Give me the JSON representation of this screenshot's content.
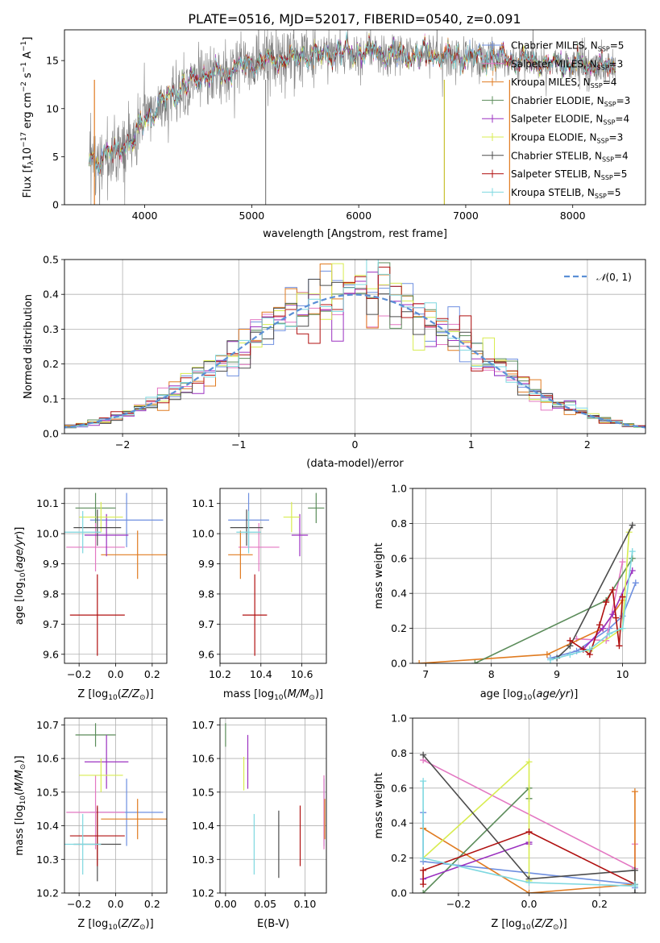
{
  "figure_title": "PLATE=0516, MJD=52017, FIBERID=0540, z=0.091",
  "colors": {
    "Chabrier MILES": "#6e8fe0",
    "Salpeter MILES": "#e377c2",
    "Kroupa MILES": "#e07b20",
    "Chabrier ELODIE": "#5b8c5a",
    "Salpeter ELODIE": "#9b30c0",
    "Kroupa ELODIE": "#d8ec50",
    "Chabrier STELIB": "#4c4c4c",
    "Salpeter STELIB": "#b01010",
    "Kroupa STELIB": "#7ed8e0",
    "data": "#808080",
    "normal": "#5b8fd6"
  },
  "chart_data": [
    {
      "id": "spectrum",
      "type": "line",
      "xlabel": "wavelength [Angstrom, rest frame]",
      "ylabel": "Flux [f_λ10^-17 erg cm^-2 s^-1 A^-1]",
      "xlim": [
        3250,
        8680
      ],
      "ylim": [
        0,
        18.2
      ],
      "xticks": [
        4000,
        5000,
        6000,
        7000,
        8000
      ],
      "yticks": [
        0,
        5,
        10,
        15
      ],
      "legend_position": "right",
      "grid": false,
      "continuum": {
        "x": [
          3480,
          3600,
          3700,
          3800,
          3900,
          4000,
          4100,
          4200,
          4300,
          4400,
          4500,
          4600,
          4700,
          4800,
          4900,
          5000,
          5200,
          5400,
          5600,
          5800,
          6000,
          6200,
          6400,
          6600,
          6800,
          7000,
          7200,
          7400,
          7600,
          7800,
          8000,
          8200,
          8400
        ],
        "y": [
          4.6,
          5.0,
          5.4,
          6.2,
          6.8,
          8.8,
          10.0,
          10.8,
          11.8,
          12.4,
          13.2,
          13.4,
          13.6,
          14.0,
          14.4,
          14.6,
          15.0,
          15.4,
          15.6,
          15.8,
          15.9,
          15.8,
          15.7,
          15.6,
          15.5,
          15.4,
          15.2,
          15.1,
          14.9,
          14.7,
          14.6,
          14.4,
          14.2
        ]
      },
      "series": [
        {
          "name": "Chabrier MILES",
          "nssp": "5"
        },
        {
          "name": "Salpeter MILES",
          "nssp": "3"
        },
        {
          "name": "Kroupa MILES",
          "nssp": "4"
        },
        {
          "name": "Chabrier ELODIE",
          "nssp": "3"
        },
        {
          "name": "Salpeter ELODIE",
          "nssp": "4"
        },
        {
          "name": "Kroupa ELODIE",
          "nssp": "3"
        },
        {
          "name": "Chabrier STELIB",
          "nssp": "4"
        },
        {
          "name": "Salpeter STELIB",
          "nssp": "5"
        },
        {
          "name": "Kroupa STELIB",
          "nssp": "5"
        }
      ]
    },
    {
      "id": "residuals",
      "type": "line",
      "xlabel": "(data-model)/error",
      "ylabel": "Normed distribution",
      "xlim": [
        -2.5,
        2.5
      ],
      "ylim": [
        0,
        0.5
      ],
      "xticks": [
        -2,
        -1,
        0,
        1,
        2
      ],
      "yticks": [
        0.0,
        0.1,
        0.2,
        0.3,
        0.4,
        0.5
      ],
      "grid": true,
      "legend": "N(0,1)",
      "legend_position": "top-right",
      "bin_width": 0.1
    },
    {
      "id": "age_vs_Z",
      "type": "scatter",
      "xlabel": "Z [log10(Z/Z⊙)]",
      "ylabel": "age  [log10(age/yr)]",
      "xlim": [
        -0.28,
        0.28
      ],
      "ylim": [
        9.57,
        10.15
      ],
      "xticks": [
        -0.2,
        0.0,
        0.2
      ],
      "yticks": [
        9.6,
        9.7,
        9.8,
        9.9,
        10.0,
        10.1
      ],
      "grid": true,
      "points": [
        {
          "series": "Chabrier MILES",
          "x": 0.06,
          "xerr": 0.2,
          "y": 10.045,
          "yerr": 0.09
        },
        {
          "series": "Salpeter MILES",
          "x": -0.11,
          "xerr": 0.16,
          "y": 9.955,
          "yerr": 0.08
        },
        {
          "series": "Kroupa MILES",
          "x": 0.12,
          "xerr": 0.2,
          "y": 9.93,
          "yerr": 0.08
        },
        {
          "series": "Chabrier ELODIE",
          "x": -0.11,
          "xerr": 0.11,
          "y": 10.085,
          "yerr": 0.05
        },
        {
          "series": "Salpeter ELODIE",
          "x": -0.05,
          "xerr": 0.12,
          "y": 9.995,
          "yerr": 0.07
        },
        {
          "series": "Kroupa ELODIE",
          "x": -0.08,
          "xerr": 0.12,
          "y": 10.055,
          "yerr": 0.05
        },
        {
          "series": "Chabrier STELIB",
          "x": -0.1,
          "xerr": 0.13,
          "y": 10.02,
          "yerr": 0.06
        },
        {
          "series": "Salpeter STELIB",
          "x": -0.1,
          "xerr": 0.15,
          "y": 9.73,
          "yerr": 0.135
        },
        {
          "series": "Kroupa STELIB",
          "x": -0.18,
          "xerr": 0.1,
          "y": 10.005,
          "yerr": 0.07
        }
      ]
    },
    {
      "id": "age_vs_mass",
      "type": "scatter",
      "xlabel": "mass [log10(M/M⊙)]",
      "ylabel": "",
      "xlim": [
        10.2,
        10.72
      ],
      "ylim": [
        9.57,
        10.15
      ],
      "xticks": [
        10.2,
        10.4,
        10.6
      ],
      "yticks": [
        9.6,
        9.7,
        9.8,
        9.9,
        10.0,
        10.1
      ],
      "grid": true,
      "points": [
        {
          "series": "Chabrier MILES",
          "x": 10.34,
          "xerr": 0.1,
          "y": 10.045,
          "yerr": 0.09
        },
        {
          "series": "Salpeter MILES",
          "x": 10.39,
          "xerr": 0.1,
          "y": 9.955,
          "yerr": 0.08
        },
        {
          "series": "Kroupa MILES",
          "x": 10.3,
          "xerr": 0.06,
          "y": 9.93,
          "yerr": 0.08
        },
        {
          "series": "Chabrier ELODIE",
          "x": 10.67,
          "xerr": 0.04,
          "y": 10.085,
          "yerr": 0.05
        },
        {
          "series": "Salpeter ELODIE",
          "x": 10.59,
          "xerr": 0.04,
          "y": 9.995,
          "yerr": 0.07
        },
        {
          "series": "Kroupa ELODIE",
          "x": 10.55,
          "xerr": 0.04,
          "y": 10.055,
          "yerr": 0.05
        },
        {
          "series": "Chabrier STELIB",
          "x": 10.33,
          "xerr": 0.08,
          "y": 10.02,
          "yerr": 0.06
        },
        {
          "series": "Salpeter STELIB",
          "x": 10.37,
          "xerr": 0.06,
          "y": 9.73,
          "yerr": 0.135
        },
        {
          "series": "Kroupa STELIB",
          "x": 10.34,
          "xerr": 0.06,
          "y": 10.005,
          "yerr": 0.07
        }
      ]
    },
    {
      "id": "mass_weight_vs_age",
      "type": "line",
      "xlabel": "age  [log10(age/yr)]",
      "ylabel": "mass weight",
      "xlim": [
        6.8,
        10.35
      ],
      "ylim": [
        0,
        1.0
      ],
      "xticks": [
        7,
        8,
        9,
        10
      ],
      "yticks": [
        0.0,
        0.2,
        0.4,
        0.6,
        0.8,
        1.0
      ],
      "grid": true,
      "series": [
        {
          "name": "Chabrier MILES",
          "x": [
            8.9,
            9.3,
            9.8,
            10.0,
            10.2
          ],
          "y": [
            0.03,
            0.07,
            0.2,
            0.27,
            0.46
          ]
        },
        {
          "name": "Salpeter MILES",
          "x": [
            9.3,
            9.75,
            10.0
          ],
          "y": [
            0.14,
            0.13,
            0.58
          ]
        },
        {
          "name": "Kroupa MILES",
          "x": [
            6.9,
            8.85,
            9.7,
            10.0
          ],
          "y": [
            0.0,
            0.05,
            0.2,
            0.36
          ]
        },
        {
          "name": "Chabrier ELODIE",
          "x": [
            7.75,
            9.75,
            10.15
          ],
          "y": [
            0.0,
            0.36,
            0.6
          ]
        },
        {
          "name": "Salpeter ELODIE",
          "x": [
            9.4,
            9.7,
            9.85,
            10.15
          ],
          "y": [
            0.08,
            0.2,
            0.28,
            0.53
          ]
        },
        {
          "name": "Kroupa ELODIE",
          "x": [
            9.5,
            10.0,
            10.1
          ],
          "y": [
            0.07,
            0.2,
            0.75
          ]
        },
        {
          "name": "Chabrier STELIB",
          "x": [
            9.0,
            9.2,
            10.15
          ],
          "y": [
            0.03,
            0.1,
            0.79
          ]
        },
        {
          "name": "Salpeter STELIB",
          "x": [
            9.2,
            9.4,
            9.5,
            9.65,
            9.75,
            9.85,
            9.9,
            9.95,
            10.0
          ],
          "y": [
            0.13,
            0.08,
            0.05,
            0.22,
            0.35,
            0.42,
            0.26,
            0.1,
            0.38
          ]
        },
        {
          "name": "Kroupa STELIB",
          "x": [
            8.9,
            9.2,
            9.5,
            9.8,
            10.0,
            10.15
          ],
          "y": [
            0.02,
            0.05,
            0.08,
            0.17,
            0.2,
            0.64
          ]
        }
      ]
    },
    {
      "id": "mass_vs_Z",
      "type": "scatter",
      "xlabel": "Z [log10(Z/Z⊙)]",
      "ylabel": "mass [log10(M/M⊙)]",
      "xlim": [
        -0.28,
        0.28
      ],
      "ylim": [
        10.2,
        10.72
      ],
      "xticks": [
        -0.2,
        0.0,
        0.2
      ],
      "yticks": [
        10.2,
        10.3,
        10.4,
        10.5,
        10.6,
        10.7
      ],
      "grid": true,
      "points": [
        {
          "series": "Chabrier MILES",
          "x": 0.06,
          "xerr": 0.2,
          "y": 10.44,
          "yerr": 0.1
        },
        {
          "series": "Salpeter MILES",
          "x": -0.11,
          "xerr": 0.16,
          "y": 10.44,
          "yerr": 0.11
        },
        {
          "series": "Kroupa MILES",
          "x": 0.12,
          "xerr": 0.2,
          "y": 10.42,
          "yerr": 0.06
        },
        {
          "series": "Chabrier ELODIE",
          "x": -0.11,
          "xerr": 0.11,
          "y": 10.67,
          "yerr": 0.035
        },
        {
          "series": "Salpeter ELODIE",
          "x": -0.05,
          "xerr": 0.12,
          "y": 10.59,
          "yerr": 0.08
        },
        {
          "series": "Kroupa ELODIE",
          "x": -0.08,
          "xerr": 0.12,
          "y": 10.55,
          "yerr": 0.05
        },
        {
          "series": "Chabrier STELIB",
          "x": -0.1,
          "xerr": 0.13,
          "y": 10.345,
          "yerr": 0.11
        },
        {
          "series": "Salpeter STELIB",
          "x": -0.1,
          "xerr": 0.15,
          "y": 10.37,
          "yerr": 0.09
        },
        {
          "series": "Kroupa STELIB",
          "x": -0.18,
          "xerr": 0.1,
          "y": 10.345,
          "yerr": 0.09
        }
      ]
    },
    {
      "id": "mass_vs_ebv",
      "type": "scatter",
      "xlabel": "E(B-V)",
      "ylabel": "",
      "xlim": [
        -0.007,
        0.127
      ],
      "ylim": [
        10.2,
        10.72
      ],
      "xticks": [
        0.0,
        0.05,
        0.1
      ],
      "yticks": [
        10.2,
        10.3,
        10.4,
        10.5,
        10.6,
        10.7
      ],
      "grid": true,
      "points": [
        {
          "series": "Chabrier MILES",
          "x": 0.124,
          "xerr": 0,
          "y": 10.44,
          "yerr": 0.1
        },
        {
          "series": "Salpeter MILES",
          "x": 0.124,
          "xerr": 0,
          "y": 10.44,
          "yerr": 0.11
        },
        {
          "series": "Kroupa MILES",
          "x": 0.125,
          "xerr": 0,
          "y": 10.42,
          "yerr": 0.06
        },
        {
          "series": "Chabrier ELODIE",
          "x": 0.0,
          "xerr": 0,
          "y": 10.67,
          "yerr": 0.035
        },
        {
          "series": "Salpeter ELODIE",
          "x": 0.028,
          "xerr": 0,
          "y": 10.59,
          "yerr": 0.08
        },
        {
          "series": "Kroupa ELODIE",
          "x": 0.023,
          "xerr": 0,
          "y": 10.555,
          "yerr": 0.05
        },
        {
          "series": "Chabrier STELIB",
          "x": 0.067,
          "xerr": 0,
          "y": 10.345,
          "yerr": 0.1
        },
        {
          "series": "Salpeter STELIB",
          "x": 0.094,
          "xerr": 0,
          "y": 10.37,
          "yerr": 0.09
        },
        {
          "series": "Kroupa STELIB",
          "x": 0.036,
          "xerr": 0,
          "y": 10.345,
          "yerr": 0.09
        }
      ]
    },
    {
      "id": "mass_weight_vs_Z",
      "type": "line",
      "xlabel": "Z [log10(Z/Z⊙)]",
      "ylabel": "mass weight",
      "xlim": [
        -0.33,
        0.33
      ],
      "ylim": [
        0,
        1.0
      ],
      "xticks": [
        -0.2,
        0.0,
        0.2
      ],
      "yticks": [
        0.0,
        0.2,
        0.4,
        0.6,
        0.8,
        1.0
      ],
      "grid": true,
      "series": [
        {
          "name": "Chabrier MILES",
          "x": [
            -0.3,
            -0.3,
            0.3,
            0.3
          ],
          "y": [
            0.46,
            0.18,
            0.05,
            0.03
          ]
        },
        {
          "name": "Salpeter MILES",
          "x": [
            -0.3,
            0.3,
            0.3
          ],
          "y": [
            0.76,
            0.14,
            0.28
          ]
        },
        {
          "name": "Kroupa MILES",
          "x": [
            -0.3,
            0.0,
            0.3,
            0.3
          ],
          "y": [
            0.37,
            0.0,
            0.05,
            0.58
          ]
        },
        {
          "name": "Chabrier ELODIE",
          "x": [
            -0.3,
            0.0,
            0.0
          ],
          "y": [
            0.0,
            0.6,
            0.54
          ]
        },
        {
          "name": "Salpeter ELODIE",
          "x": [
            -0.3,
            0.0,
            0.0
          ],
          "y": [
            0.08,
            0.29,
            0.28
          ]
        },
        {
          "name": "Kroupa ELODIE",
          "x": [
            -0.3,
            0.0,
            0.0
          ],
          "y": [
            0.2,
            0.75,
            0.07
          ]
        },
        {
          "name": "Chabrier STELIB",
          "x": [
            -0.3,
            0.0,
            0.3,
            0.3
          ],
          "y": [
            0.79,
            0.08,
            0.13,
            0.0
          ]
        },
        {
          "name": "Salpeter STELIB",
          "x": [
            -0.3,
            -0.3,
            0.0,
            0.3
          ],
          "y": [
            0.05,
            0.13,
            0.35,
            0.05
          ]
        },
        {
          "name": "Kroupa STELIB",
          "x": [
            -0.3,
            -0.3,
            0.0,
            0.3,
            0.3
          ],
          "y": [
            0.64,
            0.2,
            0.06,
            0.04,
            0.05
          ]
        }
      ]
    }
  ]
}
